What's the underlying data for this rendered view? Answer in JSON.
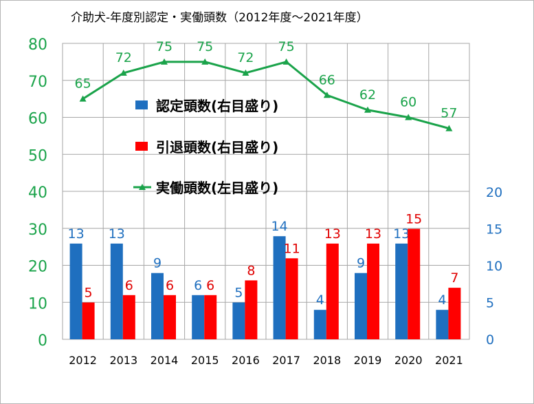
{
  "chart_data": {
    "type": "bar+line",
    "title": "介助犬-年度別認定・実働頭数（2012年度～2021年度）",
    "categories": [
      "2012",
      "2013",
      "2014",
      "2015",
      "2016",
      "2017",
      "2018",
      "2019",
      "2020",
      "2021"
    ],
    "series": [
      {
        "name": "認定頭数(右目盛り)",
        "type": "bar",
        "axis": "right",
        "color": "#1f6fbf",
        "values": [
          13,
          13,
          9,
          6,
          5,
          14,
          4,
          9,
          13,
          4
        ]
      },
      {
        "name": "引退頭数(右目盛り)",
        "type": "bar",
        "axis": "right",
        "color": "#ff0000",
        "values": [
          5,
          6,
          6,
          6,
          8,
          11,
          13,
          13,
          15,
          7
        ]
      },
      {
        "name": "実働頭数(左目盛り)",
        "type": "line",
        "axis": "left",
        "color": "#1aa34a",
        "values": [
          65,
          72,
          75,
          75,
          72,
          75,
          66,
          62,
          60,
          57
        ]
      }
    ],
    "left_axis": {
      "min": 0,
      "max": 80,
      "ticks": [
        0,
        10,
        20,
        30,
        40,
        50,
        60,
        70,
        80
      ],
      "color": "#1aa34a"
    },
    "right_axis": {
      "min": 0,
      "max": 20,
      "ticks": [
        0,
        5,
        10,
        15,
        20
      ],
      "color": "#1f6fbf"
    },
    "grid": true,
    "legend": "center-left inside plot",
    "data_label_colors": {
      "bar1": "#1f6fbf",
      "bar2": "#e00000",
      "line": "#1aa34a"
    }
  }
}
